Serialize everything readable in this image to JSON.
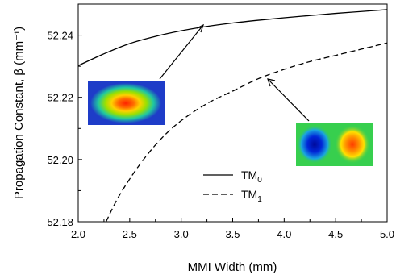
{
  "chart_data": {
    "type": "line",
    "xlabel": "MMI Width (mm)",
    "ylabel": "Propagation Constant, β (mm⁻¹)",
    "xlim": [
      2.0,
      5.0
    ],
    "ylim": [
      52.18,
      52.25
    ],
    "x_ticks": [
      "2.0",
      "2.5",
      "3.0",
      "3.5",
      "4.0",
      "4.5",
      "5.0"
    ],
    "y_ticks": [
      "52.18",
      "52.20",
      "52.22",
      "52.24"
    ],
    "grid": false,
    "legend_position": "bottom-center",
    "series": [
      {
        "name": "TM",
        "subscript": "0",
        "style": "solid",
        "x": [
          2.0,
          2.25,
          2.5,
          2.75,
          3.0,
          3.25,
          3.5,
          3.75,
          4.0,
          4.25,
          4.5,
          4.75,
          5.0
        ],
        "y": [
          52.2302,
          52.234,
          52.2373,
          52.2396,
          52.2414,
          52.2428,
          52.2439,
          52.2448,
          52.2456,
          52.2463,
          52.247,
          52.2476,
          52.2482
        ]
      },
      {
        "name": "TM",
        "subscript": "1",
        "style": "dashed",
        "x": [
          2.27,
          2.4,
          2.6,
          2.8,
          3.0,
          3.25,
          3.5,
          3.75,
          4.0,
          4.25,
          4.5,
          4.75,
          5.0
        ],
        "y": [
          52.18,
          52.1885,
          52.1985,
          52.2065,
          52.2125,
          52.218,
          52.222,
          52.226,
          52.229,
          52.2315,
          52.2335,
          52.2355,
          52.2375
        ]
      }
    ],
    "annotations": [
      {
        "kind": "mode-profile-inset",
        "mode": "TM0",
        "colormap": "jet"
      },
      {
        "kind": "mode-profile-inset",
        "mode": "TM1",
        "colormap": "jet"
      }
    ]
  }
}
